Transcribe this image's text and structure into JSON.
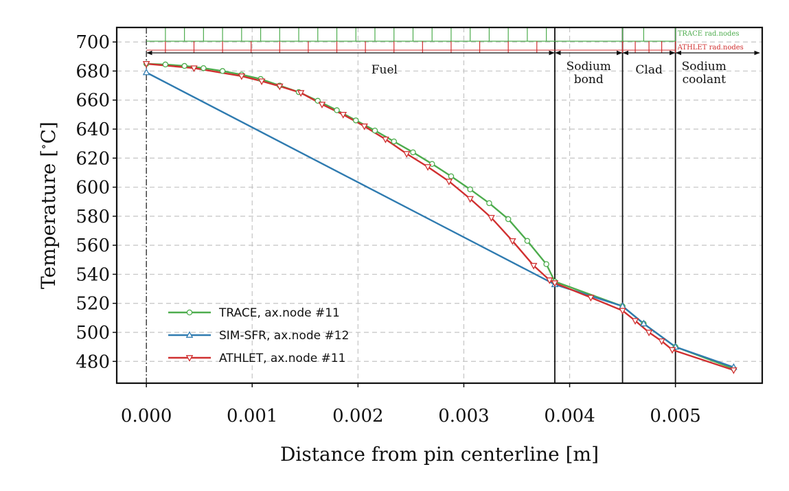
{
  "chart_data": {
    "type": "line",
    "xlabel": "Distance from pin centerline [m]",
    "ylabel": "Temperature [$^\\circ$C]",
    "xlim": [
      -0.00028,
      0.00582
    ],
    "ylim": [
      465,
      710
    ],
    "xticks": [
      0.0,
      0.001,
      0.002,
      0.003,
      0.004,
      0.005
    ],
    "xtick_labels": [
      "0.000",
      "0.001",
      "0.002",
      "0.003",
      "0.004",
      "0.005"
    ],
    "yticks": [
      480,
      500,
      520,
      540,
      560,
      580,
      600,
      620,
      640,
      660,
      680,
      700
    ],
    "ytick_labels": [
      "480",
      "500",
      "520",
      "540",
      "560",
      "580",
      "600",
      "620",
      "640",
      "660",
      "680",
      "700"
    ],
    "grid": true,
    "legend_position": "lower-left",
    "boundaries": [
      0.00386,
      0.0045,
      0.005
    ],
    "regions": [
      {
        "label": "Fuel",
        "x": 0.00225,
        "lines": [
          "Fuel"
        ]
      },
      {
        "label": "Sodium bond",
        "x": 0.00418,
        "lines": [
          "Sodium",
          "bond"
        ]
      },
      {
        "label": "Clad",
        "x": 0.00475,
        "lines": [
          "Clad"
        ]
      },
      {
        "label": "Sodium coolant",
        "x": 0.00527,
        "lines": [
          "Sodium",
          "coolant"
        ]
      }
    ],
    "node_labels": {
      "trace": "TRACE rad.nodes",
      "athlet": "ATHLET rad.nodes"
    },
    "trace_nodes_x": [
      0.00018,
      0.00036,
      0.00054,
      0.00072,
      0.0009,
      0.00108,
      0.00126,
      0.00144,
      0.00162,
      0.0018,
      0.00198,
      0.00216,
      0.00234,
      0.00252,
      0.0027,
      0.00288,
      0.00306,
      0.00324,
      0.00342,
      0.0036,
      0.00378,
      0.0045,
      0.0047,
      0.005
    ],
    "athlet_nodes_x": [
      0.00018,
      0.00045,
      0.00072,
      0.00099,
      0.00126,
      0.00153,
      0.0018,
      0.00207,
      0.00234,
      0.00261,
      0.00288,
      0.00315,
      0.00342,
      0.00369,
      0.0045,
      0.00462,
      0.00475,
      0.00487,
      0.005
    ],
    "series": [
      {
        "name": "TRACE, ax.node #11",
        "color": "#4dac4d",
        "marker": "circle",
        "x": [
          0.0,
          0.00018,
          0.00036,
          0.00054,
          0.00072,
          0.0009,
          0.00108,
          0.00126,
          0.00144,
          0.00162,
          0.0018,
          0.00198,
          0.00216,
          0.00234,
          0.00252,
          0.0027,
          0.00288,
          0.00306,
          0.00324,
          0.00342,
          0.0036,
          0.00378,
          0.00386,
          0.0045,
          0.0047,
          0.005,
          0.00555
        ],
        "y": [
          685,
          684.5,
          683.5,
          682,
          680,
          677.5,
          674.5,
          670,
          665.5,
          659.5,
          653,
          646,
          639,
          631.5,
          624,
          616,
          607.5,
          598.5,
          589,
          578,
          563,
          547,
          535,
          518,
          506,
          490,
          475
        ]
      },
      {
        "name": "SIM-SFR, ax.node #12",
        "color": "#2f7bb0",
        "marker": "triangle-up",
        "x": [
          0.0,
          0.00386,
          0.0045,
          0.0047,
          0.005,
          0.00555
        ],
        "y": [
          679,
          533,
          518,
          506,
          490,
          476
        ]
      },
      {
        "name": "ATHLET, ax.node #11",
        "color": "#d03030",
        "marker": "triangle-down",
        "x": [
          0.0,
          0.00045,
          0.0009,
          0.00109,
          0.00126,
          0.00146,
          0.00166,
          0.00186,
          0.00206,
          0.00226,
          0.00246,
          0.00266,
          0.00286,
          0.00306,
          0.00326,
          0.00346,
          0.00366,
          0.00381,
          0.00386,
          0.0042,
          0.0045,
          0.00462,
          0.00475,
          0.00487,
          0.00497,
          0.00555
        ],
        "y": [
          685,
          682,
          676.5,
          673,
          669.5,
          665,
          657,
          650,
          642,
          633,
          623,
          614,
          604,
          592,
          579,
          563,
          546,
          536,
          534,
          524,
          515,
          508,
          500,
          494,
          488,
          474
        ]
      }
    ]
  }
}
